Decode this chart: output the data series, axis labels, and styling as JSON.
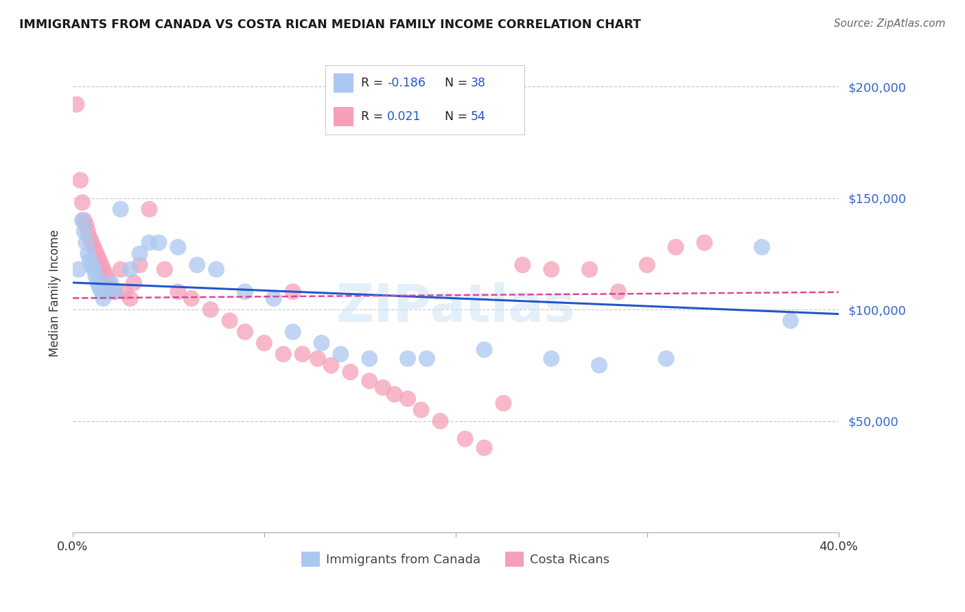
{
  "title": "IMMIGRANTS FROM CANADA VS COSTA RICAN MEDIAN FAMILY INCOME CORRELATION CHART",
  "source": "Source: ZipAtlas.com",
  "ylabel": "Median Family Income",
  "xmin": 0.0,
  "xmax": 0.4,
  "ymin": 0,
  "ymax": 215000,
  "yticks": [
    50000,
    100000,
    150000,
    200000
  ],
  "xticks": [
    0.0,
    0.1,
    0.2,
    0.3,
    0.4
  ],
  "blue_color": "#aac8f0",
  "pink_color": "#f5a0b8",
  "blue_line_color": "#2255cc",
  "pink_line_color": "#dd4499",
  "title_color": "#1a1a1a",
  "source_color": "#666666",
  "watermark": "ZIPatlas",
  "blue_r": -0.186,
  "blue_n": 38,
  "pink_r": 0.021,
  "pink_n": 54,
  "blue_scatter_x": [
    0.003,
    0.005,
    0.006,
    0.007,
    0.008,
    0.009,
    0.01,
    0.011,
    0.012,
    0.013,
    0.014,
    0.015,
    0.016,
    0.018,
    0.02,
    0.022,
    0.025,
    0.03,
    0.035,
    0.04,
    0.045,
    0.055,
    0.065,
    0.075,
    0.09,
    0.105,
    0.115,
    0.13,
    0.14,
    0.155,
    0.175,
    0.185,
    0.215,
    0.25,
    0.275,
    0.31,
    0.36,
    0.375
  ],
  "blue_scatter_y": [
    118000,
    140000,
    135000,
    130000,
    125000,
    122000,
    120000,
    118000,
    115000,
    112000,
    110000,
    108000,
    105000,
    108000,
    112000,
    108000,
    145000,
    118000,
    125000,
    130000,
    130000,
    128000,
    120000,
    118000,
    108000,
    105000,
    90000,
    85000,
    80000,
    78000,
    78000,
    78000,
    82000,
    78000,
    75000,
    78000,
    128000,
    95000
  ],
  "pink_scatter_x": [
    0.002,
    0.004,
    0.005,
    0.006,
    0.007,
    0.008,
    0.009,
    0.01,
    0.011,
    0.012,
    0.013,
    0.014,
    0.015,
    0.016,
    0.017,
    0.018,
    0.019,
    0.02,
    0.022,
    0.025,
    0.027,
    0.03,
    0.032,
    0.035,
    0.04,
    0.048,
    0.055,
    0.062,
    0.072,
    0.082,
    0.09,
    0.1,
    0.11,
    0.115,
    0.12,
    0.128,
    0.135,
    0.145,
    0.155,
    0.162,
    0.168,
    0.175,
    0.182,
    0.192,
    0.205,
    0.215,
    0.225,
    0.235,
    0.25,
    0.27,
    0.285,
    0.3,
    0.315,
    0.33
  ],
  "pink_scatter_y": [
    192000,
    158000,
    148000,
    140000,
    138000,
    135000,
    132000,
    130000,
    128000,
    126000,
    124000,
    122000,
    120000,
    118000,
    116000,
    114000,
    112000,
    110000,
    108000,
    118000,
    108000,
    105000,
    112000,
    120000,
    145000,
    118000,
    108000,
    105000,
    100000,
    95000,
    90000,
    85000,
    80000,
    108000,
    80000,
    78000,
    75000,
    72000,
    68000,
    65000,
    62000,
    60000,
    55000,
    50000,
    42000,
    38000,
    58000,
    120000,
    118000,
    118000,
    108000,
    120000,
    128000,
    130000
  ]
}
